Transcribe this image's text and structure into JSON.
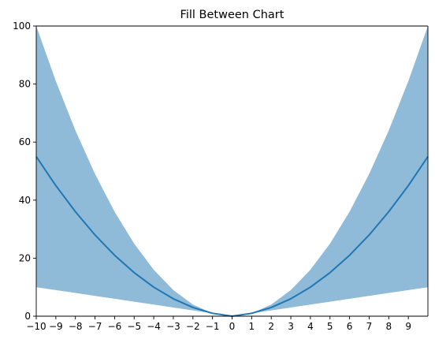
{
  "chart_data": {
    "type": "area",
    "title": "Fill Between Chart",
    "xlabel": "",
    "ylabel": "",
    "xlim": [
      -10,
      10
    ],
    "ylim": [
      0,
      100
    ],
    "grid": false,
    "x_ticks": [
      -10,
      -9,
      -8,
      -7,
      -6,
      -5,
      -4,
      -3,
      -2,
      -1,
      0,
      1,
      2,
      3,
      4,
      5,
      6,
      7,
      8,
      9
    ],
    "x_tick_labels": [
      "−10",
      "−9",
      "−8",
      "−7",
      "−6",
      "−5",
      "−4",
      "−3",
      "−2",
      "−1",
      "0",
      "1",
      "2",
      "3",
      "4",
      "5",
      "6",
      "7",
      "8",
      "9"
    ],
    "y_ticks": [
      0,
      20,
      40,
      60,
      80,
      100
    ],
    "y_tick_labels": [
      "0",
      "20",
      "40",
      "60",
      "80",
      "100"
    ],
    "x": [
      -10,
      -9,
      -8,
      -7,
      -6,
      -5,
      -4,
      -3,
      -2,
      -1,
      0,
      1,
      2,
      3,
      4,
      5,
      6,
      7,
      8,
      9,
      10
    ],
    "upper": [
      100,
      81,
      64,
      49,
      36,
      25,
      16,
      9,
      4,
      1,
      0,
      1,
      4,
      9,
      16,
      25,
      36,
      49,
      64,
      81,
      100
    ],
    "lower": [
      10,
      9,
      8,
      7,
      6,
      5,
      4,
      3,
      2,
      1,
      0,
      1,
      2,
      3,
      4,
      5,
      6,
      7,
      8,
      9,
      10
    ],
    "line": [
      55,
      45,
      36,
      28,
      21,
      15,
      10,
      6,
      3,
      1,
      0,
      1,
      3,
      6,
      10,
      15,
      21,
      28,
      36,
      45,
      55
    ],
    "colors": {
      "fill": "#1f77b4",
      "fill_opacity": 0.5,
      "line": "#1f77b4"
    }
  }
}
